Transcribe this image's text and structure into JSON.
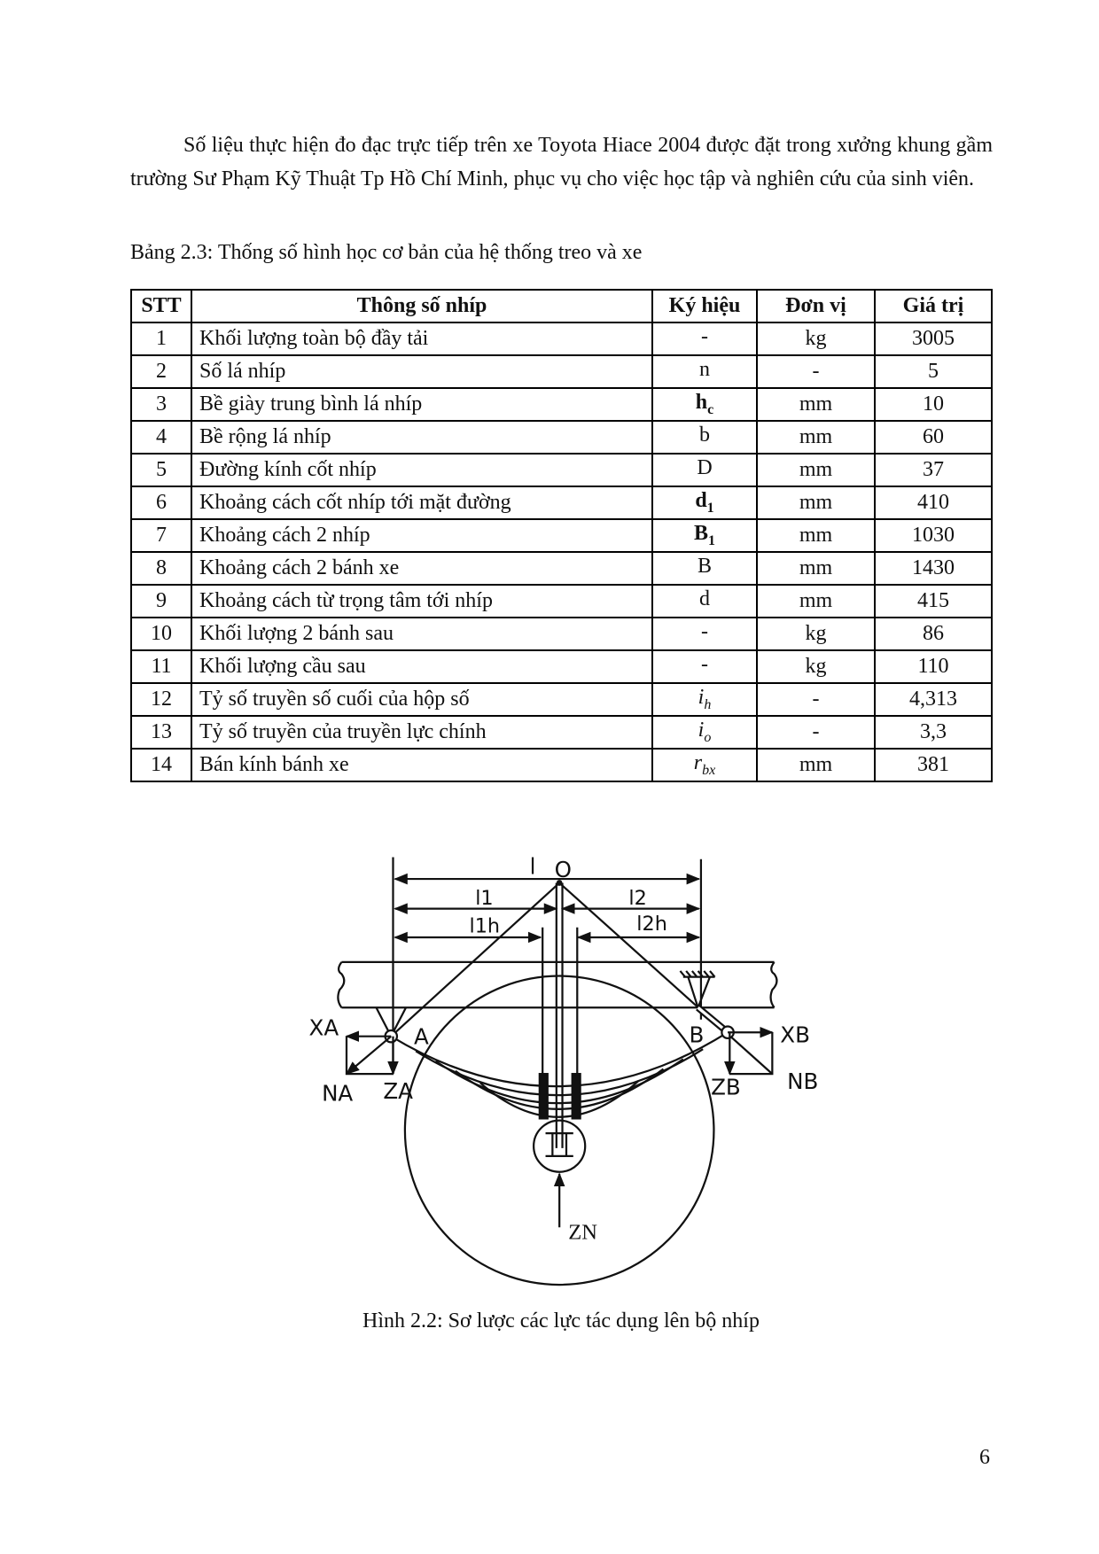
{
  "paragraph": "Số liệu thực hiện đo đạc trực tiếp trên xe Toyota Hiace 2004 được đặt trong xưởng khung gầm trường Sư Phạm Kỹ Thuật Tp Hồ Chí Minh, phục vụ cho việc học tập và nghiên cứu của sinh viên.",
  "table_caption": "Bảng 2.3: Thống số hình học cơ bản của hệ thống treo và xe",
  "table": {
    "headers": [
      "STT",
      "Thông số nhíp",
      "Ký hiệu",
      "Đơn vị",
      "Giá trị"
    ],
    "rows": [
      {
        "stt": "1",
        "name": "Khối lượng toàn bộ đầy tải",
        "sym": "-",
        "sub": "",
        "unit": "kg",
        "value": "3005"
      },
      {
        "stt": "2",
        "name": "Số lá nhíp",
        "sym": "n",
        "sub": "",
        "unit": "-",
        "value": "5"
      },
      {
        "stt": "3",
        "name": "Bề giày trung bình lá nhíp",
        "sym": "h",
        "sub": "c",
        "unit": "mm",
        "value": "10"
      },
      {
        "stt": "4",
        "name": "Bề rộng lá nhíp",
        "sym": "b",
        "sub": "",
        "unit": "mm",
        "value": "60"
      },
      {
        "stt": "5",
        "name": "Đường kính cốt nhíp",
        "sym": "D",
        "sub": "",
        "unit": "mm",
        "value": "37"
      },
      {
        "stt": "6",
        "name": "Khoảng cách cốt nhíp tới mặt đường",
        "sym": "d",
        "sub": "1",
        "unit": "mm",
        "value": "410"
      },
      {
        "stt": "7",
        "name": "Khoảng cách 2 nhíp",
        "sym": "B",
        "sub": "1",
        "unit": "mm",
        "value": "1030"
      },
      {
        "stt": "8",
        "name": "Khoảng cách 2 bánh xe",
        "sym": "B",
        "sub": "",
        "unit": "mm",
        "value": "1430"
      },
      {
        "stt": "9",
        "name": "Khoảng cách từ trọng tâm tới nhíp",
        "sym": "d",
        "sub": "",
        "unit": "mm",
        "value": "415"
      },
      {
        "stt": "10",
        "name": "Khối lượng 2 bánh sau",
        "sym": "-",
        "sub": "",
        "unit": "kg",
        "value": "86"
      },
      {
        "stt": "11",
        "name": "Khối lượng cầu sau",
        "sym": "-",
        "sub": "",
        "unit": "kg",
        "value": "110"
      },
      {
        "stt": "12",
        "name": "Tỷ số truyền số cuối của hộp số",
        "sym": "i",
        "sub": "h",
        "unit": "-",
        "value": "4,313"
      },
      {
        "stt": "13",
        "name": "Tỷ số truyền của truyền lực chính",
        "sym": "i",
        "sub": "o",
        "unit": "-",
        "value": "3,3"
      },
      {
        "stt": "14",
        "name": "Bán kính bánh xe",
        "sym": "r",
        "sub": "bx",
        "unit": "mm",
        "value": "381"
      }
    ]
  },
  "figure": {
    "labels": {
      "l": "l",
      "O": "O",
      "l1": "l1",
      "l2": "l2",
      "l1h": "l1h",
      "l2h": "l2h",
      "XA": "XA",
      "NA": "NA",
      "ZA": "ZA",
      "A": "A",
      "B": "B",
      "XB": "XB",
      "ZB": "ZB",
      "NB": "NB",
      "ZN": "ZN"
    },
    "caption": "Hình 2.2: Sơ lược các lực tác dụng lên bộ nhíp"
  },
  "page_number": "6"
}
